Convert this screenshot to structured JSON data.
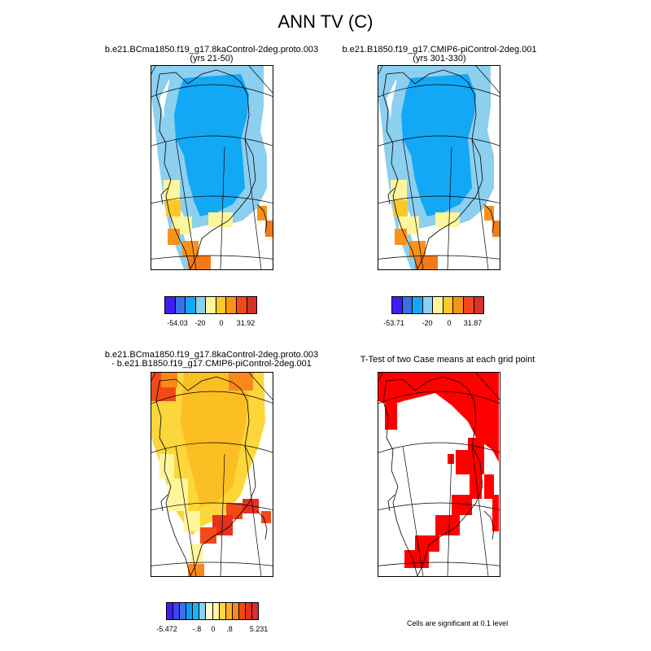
{
  "title": "ANN TV (C)",
  "panels": [
    {
      "id": "p1",
      "title_line1": "b.e21.BCma1850.f19_g17.8kaControl-2deg.proto.003",
      "title_line2": "(yrs 21-50)"
    },
    {
      "id": "p2",
      "title_line1": "b.e21.B1850.f19_g17.CMIP6-piControl-2deg.001",
      "title_line2": "(yrs 301-330)"
    },
    {
      "id": "p3",
      "title_line1": "b.e21.BCma1850.f19_g17.8kaControl-2deg.proto.003",
      "title_line2": "- b.e21.B1850.f19_g17.CMIP6-piControl-2deg.001"
    },
    {
      "id": "p4",
      "title_line1": "T-Test of two Case means at each grid point",
      "title_line2": ""
    }
  ],
  "colorbars": [
    {
      "id": "cb1",
      "colors": [
        "#3b1ff2",
        "#3a6fe8",
        "#12a8f5",
        "#8ccfef",
        "#fff59d",
        "#fcc92a",
        "#f7921a",
        "#f24a16",
        "#d8302a"
      ],
      "labels": [
        "-54.03",
        "-20",
        "0",
        "31.92"
      ]
    },
    {
      "id": "cb2",
      "colors": [
        "#3b1ff2",
        "#3a6fe8",
        "#12a8f5",
        "#8ccfef",
        "#fff59d",
        "#fcc92a",
        "#f7921a",
        "#f24a16",
        "#d8302a"
      ],
      "labels": [
        "-53.71",
        "-20",
        "0",
        "31.87"
      ]
    },
    {
      "id": "cb3",
      "colors": [
        "#3b1ff2",
        "#3a45f0",
        "#3a72e8",
        "#1598f2",
        "#19b4f5",
        "#8ccfef",
        "#fffbd0",
        "#fff59d",
        "#fcd63a",
        "#fbb024",
        "#f7891a",
        "#f24a16",
        "#e83020",
        "#d8302a"
      ],
      "labels": [
        "-5.472",
        "-.8",
        "0",
        ".8",
        "5.231"
      ]
    }
  ],
  "footnote": "Cells are significant at 0.1 level",
  "chart_data": [
    {
      "type": "heatmap",
      "panel": "p1",
      "map_region": "Greenland",
      "title": "b.e21.BCma1850.f19_g17.8kaControl-2deg.proto.003 (yrs 21-50)",
      "legend_labels": [
        "-54.03",
        "-20",
        "0",
        "31.92"
      ],
      "value_range": [
        -54.03,
        31.92
      ]
    },
    {
      "type": "heatmap",
      "panel": "p2",
      "map_region": "Greenland",
      "title": "b.e21.B1850.f19_g17.CMIP6-piControl-2deg.001 (yrs 301-330)",
      "legend_labels": [
        "-53.71",
        "-20",
        "0",
        "31.87"
      ],
      "value_range": [
        -53.71,
        31.87
      ]
    },
    {
      "type": "heatmap",
      "panel": "p3",
      "map_region": "Greenland",
      "title": "b.e21.BCma1850.f19_g17.8kaControl-2deg.proto.003 - b.e21.B1850.f19_g17.CMIP6-piControl-2deg.001",
      "legend_labels": [
        "-5.472",
        "-.8",
        "0",
        ".8",
        "5.231"
      ],
      "value_range": [
        -5.472,
        5.231
      ]
    },
    {
      "type": "heatmap",
      "panel": "p4",
      "map_region": "Greenland",
      "title": "T-Test of two Case means at each grid point",
      "annotation": "Cells are significant at 0.1 level"
    }
  ]
}
